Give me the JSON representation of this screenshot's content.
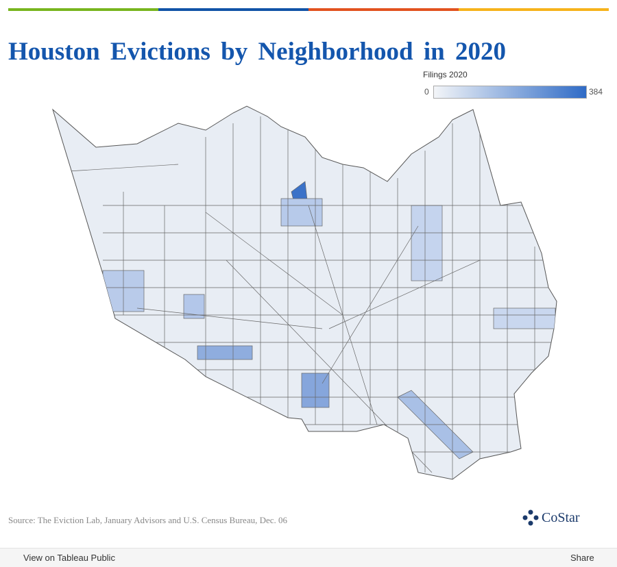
{
  "header": {
    "title": "Houston Evictions by Neighborhood in 2020"
  },
  "legend": {
    "title": "Filings 2020",
    "min": 0,
    "max": 384,
    "colors": [
      "#f3f5f8",
      "#2f6bc6"
    ]
  },
  "footer": {
    "source": "Source: The Eviction Lab, January Advisors and U.S. Census Bureau, Dec. 06",
    "logo": "CoStar"
  },
  "toolbar": {
    "view": "View on Tableau Public",
    "share": "Share"
  }
}
